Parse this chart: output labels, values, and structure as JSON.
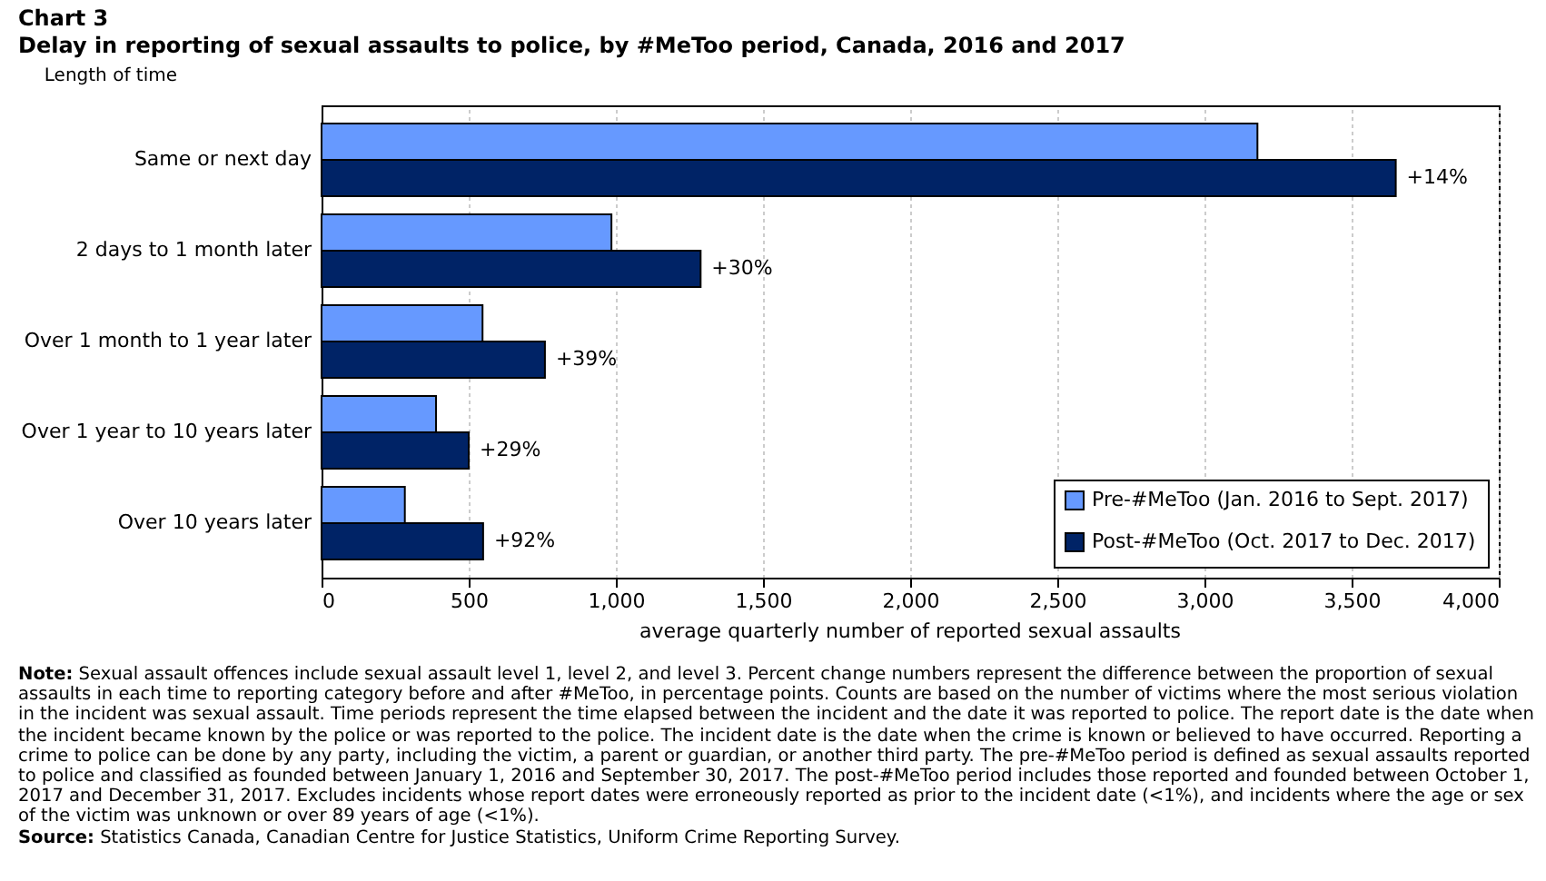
{
  "chart_data": {
    "type": "bar",
    "orientation": "horizontal",
    "title": "Chart 3",
    "subtitle": "Delay in reporting of sexual assaults to police, by #MeToo period, Canada, 2016 and 2017",
    "ylabel": "Length of time",
    "xlabel": "average quarterly number of reported sexual assaults",
    "categories": [
      "Same or next day",
      "2 days to 1 month later",
      "Over 1 month to 1 year later",
      "Over 1 year to 10 years later",
      "Over 10 years later"
    ],
    "series": [
      {
        "name": "Pre-#MeToo (Jan. 2016 to Sept. 2017)",
        "color": "#6699ff",
        "values": [
          3180,
          985,
          547,
          389,
          283
        ]
      },
      {
        "name": "Post-#MeToo (Oct. 2017 to Dec. 2017)",
        "color": "#002366",
        "values": [
          3650,
          1288,
          759,
          500,
          549
        ]
      }
    ],
    "xlim": [
      0,
      4000
    ],
    "xticks": [
      {
        "value": 0,
        "label": "0"
      },
      {
        "value": 500,
        "label": "500"
      },
      {
        "value": 1000,
        "label": "1,000"
      },
      {
        "value": 1500,
        "label": "1,500"
      },
      {
        "value": 2000,
        "label": "2,000"
      },
      {
        "value": 2500,
        "label": "2,500"
      },
      {
        "value": 3000,
        "label": "3,000"
      },
      {
        "value": 3500,
        "label": "3,500"
      },
      {
        "value": 4000,
        "label": "4,000"
      }
    ],
    "grid": "x",
    "legend": "bottom right",
    "annotations": [
      {
        "text": "+14%",
        "x": 3650,
        "y": "Same or next day"
      },
      {
        "text": "+30%",
        "x": 1288,
        "y": "2 days to 1 month later"
      },
      {
        "text": "+39%",
        "x": 759,
        "y": "Over 1 month to 1 year later"
      },
      {
        "text": "+29%",
        "x": 500,
        "y": "Over 1 year to 10 years later"
      },
      {
        "text": "+92%",
        "x": 549,
        "y": "Over 10 years later"
      },
      "Note: Sexual assault offences include sexual assault level 1, level 2, and level 3. Percent change numbers represent the difference between the proportion of sexual assaults in each time to reporting category before and after #MeToo, in percentage points. Counts are based on the number of victims where the most serious violation in the incident was sexual assault. Time periods represent the time elapsed between the incident and the date it was reported to police. The report date is the date when the incident became known by the police or was reported to the police. The incident date is the date when the crime is known or believed to have occurred. Reporting a crime to police can be done by any party, including the victim, a parent or guardian, or another third party. The pre-#MeToo period is defined as sexual assaults reported to police and classified as founded between January 1, 2016 and September 30, 2017. The post-#MeToo period includes those reported and founded between October 1, 2017 and December 31, 2017. Excludes incidents whose report dates were erroneously reported as prior to the incident date (<1%), and incidents where the age or sex of the victim was unknown or over 89 years of age (<1%).",
      "Source: Statistics Canada, Canadian Centre for Justice Statistics, Uniform Crime Reporting Survey."
    ]
  }
}
